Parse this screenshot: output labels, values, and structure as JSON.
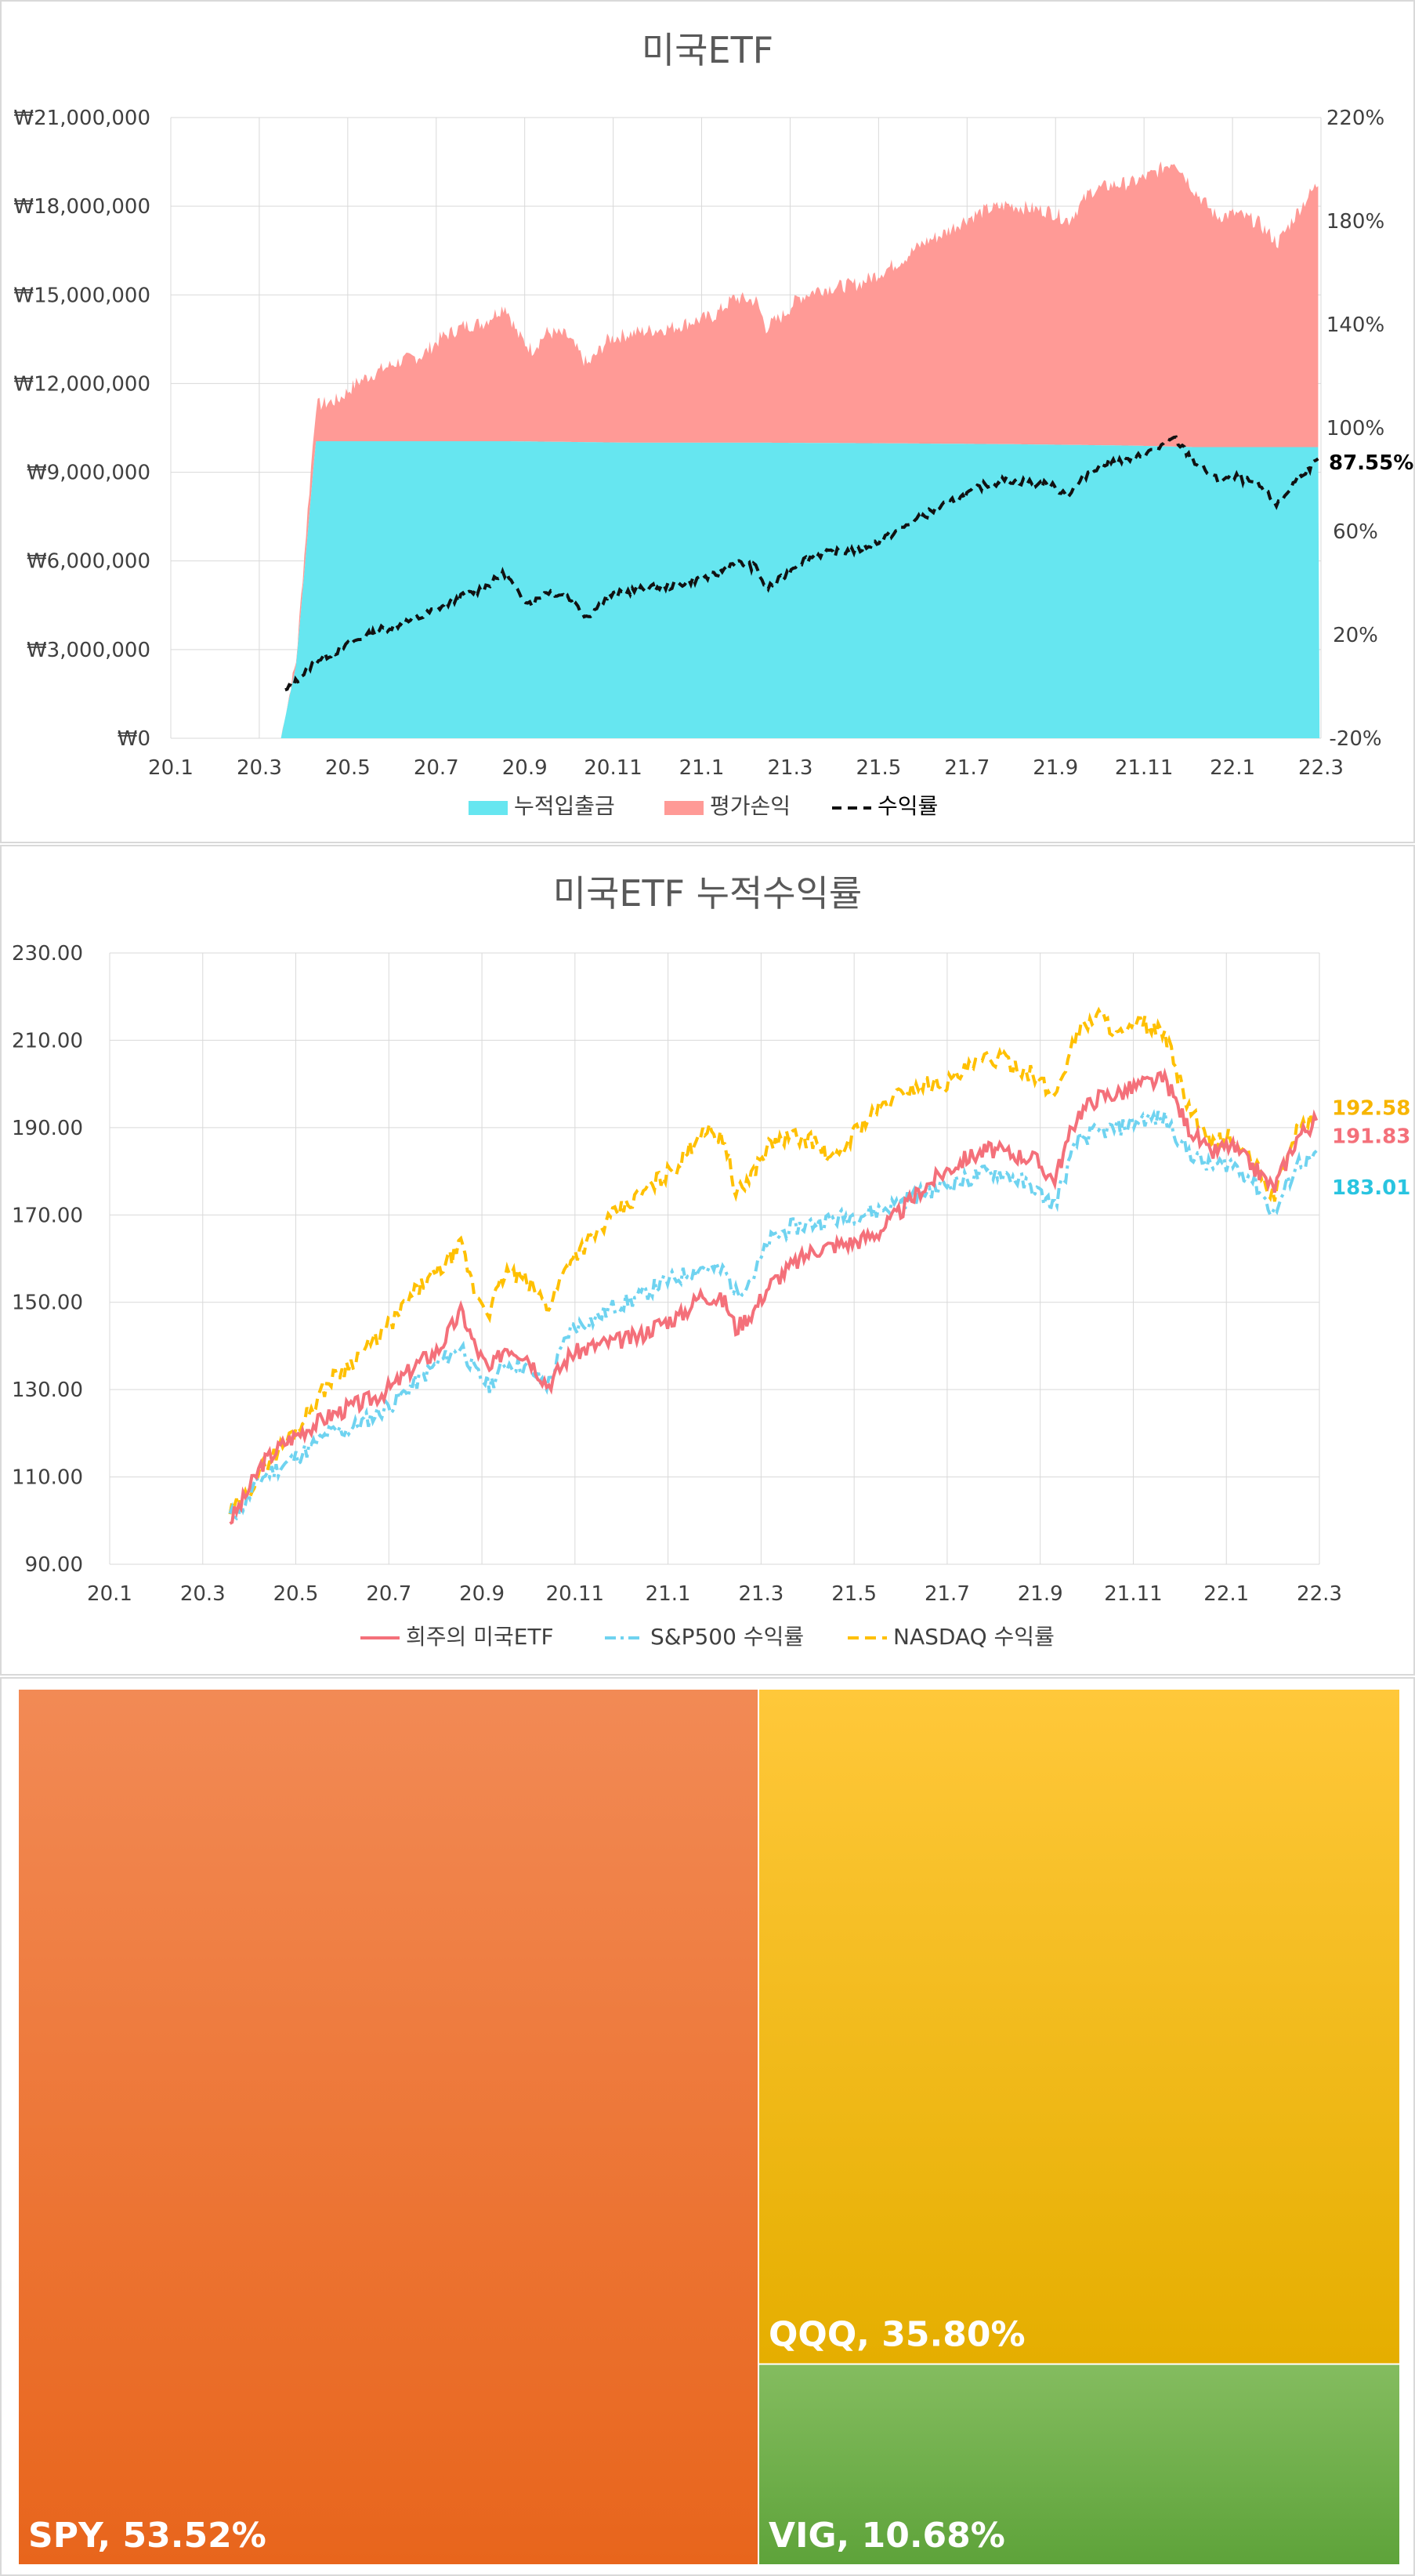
{
  "colors": {
    "deposit": "#66E6F0",
    "gain": "#FF9A96",
    "return_line": "#111111",
    "mine": "#F4707A",
    "sp500": "#6FD3F0",
    "nasdaq": "#FFC000",
    "mine_label": "#F4707A",
    "sp500_label": "#29C4E0",
    "nasdaq_label": "#F7B500",
    "spy": "#F07A32",
    "qqq": "#F7C21A",
    "vig": "#6DAE45",
    "grid": "#d9d9d9",
    "axis_text": "#404040"
  },
  "chart_data": [
    {
      "type": "area",
      "title": "미국ETF",
      "x_ticks": [
        "20.1",
        "20.3",
        "20.5",
        "20.7",
        "20.9",
        "20.11",
        "21.1",
        "21.3",
        "21.5",
        "21.7",
        "21.9",
        "21.11",
        "22.1",
        "22.3"
      ],
      "y_ticks": [
        "₩0",
        "₩3,000,000",
        "₩6,000,000",
        "₩9,000,000",
        "₩12,000,000",
        "₩15,000,000",
        "₩18,000,000",
        "₩21,000,000"
      ],
      "y2_ticks": [
        "-20%",
        "20%",
        "60%",
        "100%",
        "140%",
        "180%",
        "220%"
      ],
      "ylim": [
        0,
        21000000
      ],
      "y2lim": [
        -20,
        220
      ],
      "series": [
        {
          "name": "누적입출금",
          "kind": "stacked-area",
          "x": [
            "20.3.20",
            "20.3.31",
            "20.4.15",
            "20.6.1",
            "20.9.1",
            "20.12.1",
            "21.3.1",
            "21.6.1",
            "21.9.1",
            "21.12.1",
            "22.1.15",
            "22.4.15"
          ],
          "values": [
            0,
            2500000,
            10050000,
            10050000,
            10050000,
            10000000,
            10000000,
            9980000,
            9950000,
            9900000,
            9850000,
            9850000
          ]
        },
        {
          "name": "평가손익",
          "kind": "stacked-area",
          "x": [
            "20.3.20",
            "20.3.31",
            "20.4.15",
            "20.5.1",
            "20.5.15",
            "20.6.1",
            "20.6.15",
            "20.7.1",
            "20.7.15",
            "20.8.1",
            "20.8.15",
            "20.9.1",
            "20.9.10",
            "20.9.20",
            "20.10.1",
            "20.10.15",
            "20.10.30",
            "20.11.15",
            "20.12.1",
            "20.12.15",
            "21.1.1",
            "21.1.15",
            "21.2.1",
            "21.2.15",
            "21.3.1",
            "21.3.8",
            "21.3.20",
            "21.4.1",
            "21.4.15",
            "21.5.1",
            "21.5.15",
            "21.6.1",
            "21.6.15",
            "21.7.1",
            "21.7.15",
            "21.8.1",
            "21.8.15",
            "21.9.1",
            "21.9.15",
            "21.10.1",
            "21.10.15",
            "21.11.1",
            "21.11.15",
            "21.12.1",
            "21.12.15",
            "22.1.1",
            "22.1.15",
            "22.2.1",
            "22.2.15",
            "22.3.1",
            "22.3.15",
            "22.4.1",
            "22.4.15"
          ],
          "values": [
            0,
            150000,
            1200000,
            1400000,
            2000000,
            2400000,
            2700000,
            2900000,
            3500000,
            3900000,
            4000000,
            4600000,
            3600000,
            3100000,
            3700000,
            3600000,
            2600000,
            3500000,
            3700000,
            3800000,
            3900000,
            4100000,
            4300000,
            4900000,
            4800000,
            3900000,
            4300000,
            4900000,
            5200000,
            5300000,
            5400000,
            5800000,
            6200000,
            6800000,
            7100000,
            7600000,
            7900000,
            8100000,
            8000000,
            7900000,
            7600000,
            8600000,
            8800000,
            8900000,
            9200000,
            9700000,
            8700000,
            7800000,
            7900000,
            7600000,
            6900000,
            8100000,
            9000000
          ]
        },
        {
          "name": "수익률",
          "kind": "dashed-line",
          "axis": "right",
          "x": [
            "20.3.23",
            "20.4.1",
            "20.4.15",
            "20.5.1",
            "20.5.15",
            "20.6.1",
            "20.6.15",
            "20.7.1",
            "20.7.15",
            "20.8.1",
            "20.8.15",
            "20.9.1",
            "20.9.10",
            "20.9.20",
            "20.10.1",
            "20.10.15",
            "20.10.30",
            "20.11.15",
            "20.12.1",
            "20.12.15",
            "21.1.1",
            "21.1.15",
            "21.2.1",
            "21.2.15",
            "21.3.1",
            "21.3.8",
            "21.3.20",
            "21.4.1",
            "21.4.15",
            "21.5.1",
            "21.5.15",
            "21.6.1",
            "21.6.15",
            "21.7.1",
            "21.7.15",
            "21.8.1",
            "21.8.15",
            "21.9.1",
            "21.9.15",
            "21.10.1",
            "21.10.15",
            "21.11.1",
            "21.11.15",
            "21.12.1",
            "21.12.15",
            "22.1.1",
            "22.1.15",
            "22.2.1",
            "22.2.15",
            "22.3.1",
            "22.3.15",
            "22.4.1",
            "22.4.15"
          ],
          "values": [
            -2,
            2,
            10,
            14,
            18,
            22,
            24,
            27,
            31,
            35,
            38,
            44,
            36,
            32,
            37,
            35,
            27,
            35,
            37,
            38,
            39,
            41,
            43,
            48,
            46,
            38,
            42,
            48,
            51,
            52,
            53,
            57,
            61,
            66,
            70,
            74,
            78,
            80,
            79,
            78,
            74,
            84,
            87,
            88,
            91,
            96,
            87,
            80,
            81,
            78,
            70,
            82,
            87.55
          ]
        }
      ],
      "end_label": "87.55%",
      "legend": {
        "position": "bottom",
        "items": [
          "누적입출금",
          "평가손익",
          "수익률"
        ]
      }
    },
    {
      "type": "line",
      "title": "미국ETF 누적수익률",
      "x_ticks": [
        "20.1",
        "20.3",
        "20.5",
        "20.7",
        "20.9",
        "20.11",
        "21.1",
        "21.3",
        "21.5",
        "21.7",
        "21.9",
        "21.11",
        "22.1",
        "22.3"
      ],
      "y_ticks": [
        "90.00",
        "110.00",
        "130.00",
        "150.00",
        "170.00",
        "190.00",
        "210.00",
        "230.00"
      ],
      "ylim": [
        90,
        230
      ],
      "series": [
        {
          "name": "희주의 미국ETF",
          "style": "solid",
          "x": [
            "20.3.23",
            "20.4.1",
            "20.4.15",
            "20.5.1",
            "20.5.15",
            "20.6.1",
            "20.6.15",
            "20.7.1",
            "20.7.15",
            "20.8.1",
            "20.8.15",
            "20.9.1",
            "20.9.10",
            "20.9.20",
            "20.10.1",
            "20.10.15",
            "20.10.30",
            "20.11.15",
            "20.12.1",
            "20.12.15",
            "21.1.1",
            "21.1.15",
            "21.2.1",
            "21.2.15",
            "21.3.1",
            "21.3.8",
            "21.3.20",
            "21.4.1",
            "21.4.15",
            "21.5.1",
            "21.5.15",
            "21.6.1",
            "21.6.15",
            "21.7.1",
            "21.7.15",
            "21.8.1",
            "21.8.15",
            "21.9.1",
            "21.9.15",
            "21.10.1",
            "21.10.15",
            "21.11.1",
            "21.11.15",
            "21.12.1",
            "21.12.15",
            "22.1.1",
            "22.1.15",
            "22.2.1",
            "22.2.15",
            "22.3.1",
            "22.3.15",
            "22.4.1",
            "22.4.15"
          ],
          "values": [
            100,
            104,
            113,
            118,
            121,
            124,
            126,
            128,
            131,
            136,
            139,
            148,
            140,
            134,
            140,
            138,
            131,
            138,
            140,
            141,
            142,
            145,
            147,
            152,
            150,
            144,
            148,
            154,
            158,
            162,
            163,
            164,
            166,
            171,
            176,
            180,
            183,
            185,
            184,
            183,
            178,
            193,
            197,
            198,
            200,
            201,
            191,
            184,
            186,
            181,
            176,
            188,
            191.83
          ]
        },
        {
          "name": "S&P500 수익률",
          "style": "dash-dot",
          "x": [
            "20.3.23",
            "20.4.1",
            "20.4.15",
            "20.5.1",
            "20.5.15",
            "20.6.1",
            "20.6.15",
            "20.7.1",
            "20.7.15",
            "20.8.1",
            "20.8.15",
            "20.9.1",
            "20.9.10",
            "20.9.20",
            "20.10.1",
            "20.10.15",
            "20.10.30",
            "20.11.15",
            "20.12.1",
            "20.12.15",
            "21.1.1",
            "21.1.15",
            "21.2.1",
            "21.2.15",
            "21.3.1",
            "21.3.8",
            "21.3.20",
            "21.4.1",
            "21.4.15",
            "21.5.1",
            "21.5.15",
            "21.6.1",
            "21.6.15",
            "21.7.1",
            "21.7.15",
            "21.8.1",
            "21.8.15",
            "21.9.1",
            "21.9.15",
            "21.10.1",
            "21.10.15",
            "21.11.1",
            "21.11.15",
            "21.12.1",
            "21.12.15",
            "22.1.1",
            "22.1.15",
            "22.2.1",
            "22.2.15",
            "22.3.1",
            "22.3.15",
            "22.4.1",
            "22.4.15"
          ],
          "values": [
            101,
            103,
            110,
            113,
            116,
            120,
            121,
            124,
            127,
            132,
            136,
            140,
            134,
            131,
            136,
            135,
            131,
            144,
            146,
            149,
            151,
            154,
            156,
            158,
            157,
            152,
            156,
            164,
            167,
            168,
            169,
            170,
            171,
            173,
            175,
            177,
            178,
            180,
            179,
            176,
            172,
            187,
            189,
            190,
            192,
            192,
            185,
            181,
            182,
            178,
            170,
            182,
            183.01
          ]
        },
        {
          "name": "NASDAQ 수익률",
          "style": "dashed",
          "x": [
            "20.3.23",
            "20.4.1",
            "20.4.15",
            "20.5.1",
            "20.5.15",
            "20.6.1",
            "20.6.15",
            "20.7.1",
            "20.7.15",
            "20.8.1",
            "20.8.15",
            "20.9.1",
            "20.9.10",
            "20.9.20",
            "20.10.1",
            "20.10.15",
            "20.10.30",
            "20.11.15",
            "20.12.1",
            "20.12.15",
            "21.1.1",
            "21.1.15",
            "21.2.1",
            "21.2.15",
            "21.3.1",
            "21.3.8",
            "21.3.20",
            "21.4.1",
            "21.4.15",
            "21.5.1",
            "21.5.15",
            "21.6.1",
            "21.6.15",
            "21.7.1",
            "21.7.15",
            "21.8.1",
            "21.8.15",
            "21.9.1",
            "21.9.15",
            "21.10.1",
            "21.10.15",
            "21.11.1",
            "21.11.15",
            "21.12.1",
            "21.12.15",
            "22.1.1",
            "22.1.15",
            "22.2.1",
            "22.2.15",
            "22.3.1",
            "22.3.15",
            "22.4.1",
            "22.4.15"
          ],
          "values": [
            102,
            104,
            112,
            118,
            124,
            132,
            136,
            141,
            146,
            153,
            157,
            163,
            152,
            148,
            157,
            155,
            149,
            160,
            165,
            170,
            174,
            178,
            182,
            190,
            187,
            174,
            180,
            186,
            188,
            187,
            182,
            190,
            194,
            198,
            200,
            200,
            203,
            206,
            205,
            202,
            197,
            212,
            216,
            211,
            214,
            211,
            196,
            186,
            188,
            182,
            174,
            190,
            192.58
          ]
        }
      ],
      "end_labels": [
        "192.58",
        "191.83",
        "183.01"
      ],
      "legend": {
        "position": "bottom",
        "items": [
          "희주의 미국ETF",
          "S&P500 수익률",
          "NASDAQ 수익률"
        ]
      }
    },
    {
      "type": "treemap",
      "items": [
        {
          "name": "SPY",
          "value": 53.52,
          "label": "SPY, 53.52%"
        },
        {
          "name": "QQQ",
          "value": 35.8,
          "label": "QQQ, 35.80%"
        },
        {
          "name": "VIG",
          "value": 10.68,
          "label": "VIG, 10.68%"
        }
      ]
    }
  ]
}
